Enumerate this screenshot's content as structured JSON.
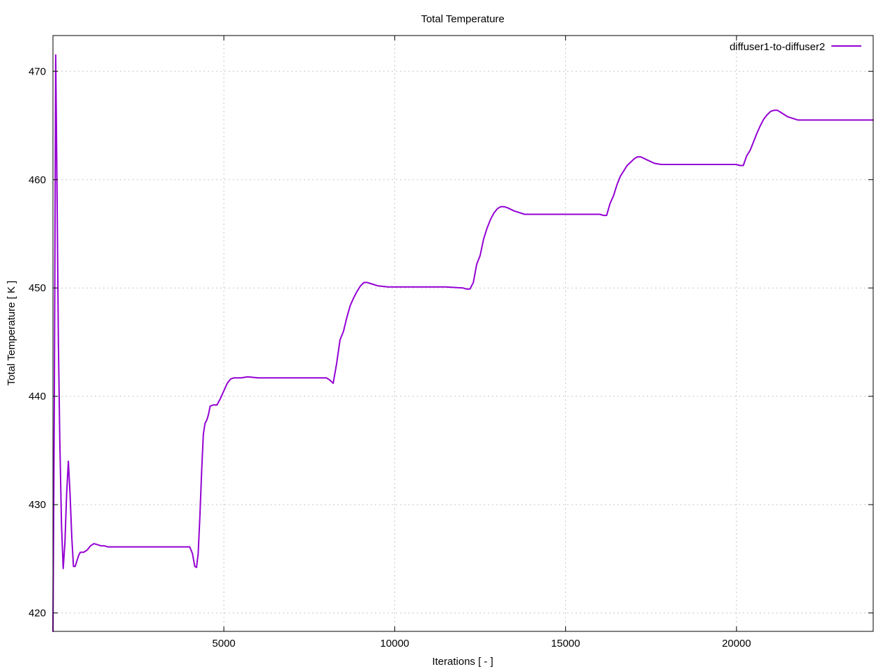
{
  "chart_data": {
    "type": "line",
    "title": "Total Temperature",
    "xlabel": "Iterations [ - ]",
    "ylabel": "Total Temperature [ K ]",
    "xlim": [
      0,
      24000
    ],
    "ylim": [
      418.3,
      473.3
    ],
    "xticks": [
      5000,
      10000,
      15000,
      20000
    ],
    "xtick_labels": [
      "5000",
      "10000",
      "15000",
      "20000"
    ],
    "yticks": [
      420,
      430,
      440,
      450,
      460,
      470
    ],
    "ytick_labels": [
      "420",
      "430",
      "440",
      "450",
      "460",
      "470"
    ],
    "grid": true,
    "legend_position": "top-right",
    "color": "#9400d3",
    "series": [
      {
        "name": "diffuser1-to-diffuser2",
        "x": [
          0,
          40,
          80,
          110,
          130,
          160,
          200,
          250,
          300,
          350,
          400,
          450,
          500,
          550,
          600,
          650,
          700,
          750,
          800,
          850,
          900,
          1000,
          1100,
          1200,
          1300,
          1400,
          1500,
          1600,
          1700,
          2000,
          2500,
          3000,
          3500,
          4000,
          4080,
          4150,
          4200,
          4250,
          4300,
          4350,
          4400,
          4450,
          4500,
          4550,
          4600,
          4700,
          4800,
          4900,
          5000,
          5100,
          5200,
          5300,
          5400,
          5500,
          5700,
          6000,
          6500,
          7000,
          7500,
          8000,
          8100,
          8200,
          8300,
          8400,
          8500,
          8600,
          8700,
          8800,
          8900,
          9000,
          9100,
          9200,
          9300,
          9500,
          9800,
          10000,
          10500,
          11000,
          11500,
          12000,
          12100,
          12200,
          12300,
          12400,
          12500,
          12600,
          12700,
          12800,
          12900,
          13000,
          13100,
          13200,
          13300,
          13500,
          13800,
          14000,
          14500,
          15000,
          15500,
          16000,
          16100,
          16200,
          16300,
          16400,
          16500,
          16600,
          16700,
          16800,
          16900,
          17000,
          17100,
          17200,
          17400,
          17600,
          17800,
          18000,
          18500,
          19000,
          19500,
          20000,
          20100,
          20200,
          20300,
          20400,
          20500,
          20600,
          20700,
          20800,
          20900,
          21000,
          21100,
          21200,
          21300,
          21500,
          21800,
          22000,
          22500,
          23000,
          23500,
          24000
        ],
        "y": [
          418.3,
          440,
          471.5,
          462,
          455,
          445,
          436,
          428,
          424.1,
          426.5,
          431,
          434,
          431,
          427,
          424.3,
          424.3,
          424.8,
          425.3,
          425.6,
          425.6,
          425.6,
          425.8,
          426.2,
          426.4,
          426.3,
          426.2,
          426.2,
          426.1,
          426.1,
          426.1,
          426.1,
          426.1,
          426.1,
          426.1,
          425.5,
          424.3,
          424.2,
          425.5,
          429,
          433,
          436.5,
          437.5,
          437.8,
          438.3,
          439.1,
          439.2,
          439.2,
          439.8,
          440.5,
          441.2,
          441.6,
          441.7,
          441.7,
          441.7,
          441.8,
          441.7,
          441.7,
          441.7,
          441.7,
          441.7,
          441.5,
          441.2,
          443,
          445.2,
          446,
          447.3,
          448.4,
          449.1,
          449.7,
          450.2,
          450.5,
          450.5,
          450.4,
          450.2,
          450.1,
          450.1,
          450.1,
          450.1,
          450.1,
          450,
          449.9,
          449.9,
          450.5,
          452.2,
          453,
          454.5,
          455.5,
          456.3,
          456.9,
          457.3,
          457.5,
          457.5,
          457.4,
          457.1,
          456.8,
          456.8,
          456.8,
          456.8,
          456.8,
          456.8,
          456.7,
          456.7,
          457.8,
          458.5,
          459.5,
          460.3,
          460.8,
          461.3,
          461.6,
          461.9,
          462.1,
          462.1,
          461.8,
          461.5,
          461.4,
          461.4,
          461.4,
          461.4,
          461.4,
          461.4,
          461.3,
          461.3,
          462.2,
          462.7,
          463.5,
          464.3,
          465,
          465.6,
          466,
          466.3,
          466.4,
          466.4,
          466.2,
          465.8,
          465.5,
          465.5,
          465.5,
          465.5,
          465.5,
          465.5
        ]
      }
    ]
  }
}
